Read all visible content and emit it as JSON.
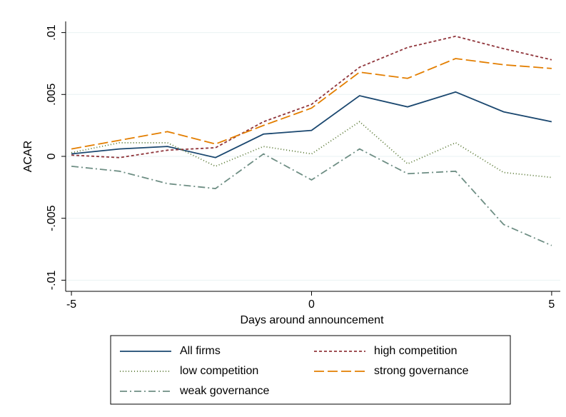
{
  "chart_data": {
    "type": "line",
    "x": [
      -5,
      -4,
      -3,
      -2,
      -1,
      0,
      1,
      2,
      3,
      4,
      5
    ],
    "series": [
      {
        "name": "All firms",
        "color": "#1a476f",
        "dash": "none",
        "values": [
          0.0002,
          0.0006,
          0.0008,
          -0.0001,
          0.0018,
          0.0021,
          0.0049,
          0.004,
          0.0052,
          0.0036,
          0.0028
        ]
      },
      {
        "name": "high competition",
        "color": "#90353b",
        "dash": "4 3",
        "values": [
          0.0001,
          -0.0001,
          0.0005,
          0.0007,
          0.0028,
          0.0042,
          0.0072,
          0.0088,
          0.0097,
          0.0087,
          0.0078
        ]
      },
      {
        "name": "low competition",
        "color": "#55752f",
        "dash": "1 3",
        "values": [
          0.0003,
          0.0011,
          0.0011,
          -0.0008,
          0.0008,
          0.0002,
          0.0028,
          -0.0006,
          0.0011,
          -0.0013,
          -0.0017
        ]
      },
      {
        "name": "strong governance",
        "color": "#e37e00",
        "dash": "14 5",
        "values": [
          0.0006,
          0.0013,
          0.002,
          0.001,
          0.0025,
          0.0039,
          0.0068,
          0.0063,
          0.0079,
          0.0074,
          0.0071
        ]
      },
      {
        "name": "weak governance",
        "color": "#6e8e84",
        "dash": "10 4 2 4",
        "values": [
          -0.0008,
          -0.0012,
          -0.0022,
          -0.0026,
          0.0002,
          -0.0019,
          0.0006,
          -0.0014,
          -0.0012,
          -0.0055,
          -0.0072
        ]
      }
    ],
    "x_label": "Days around announcement",
    "y_label": "ACAR",
    "xlim": [
      -5.12,
      5.18
    ],
    "xticks": [
      -5,
      0,
      5
    ],
    "ylim": [
      -0.0109,
      0.0109
    ],
    "yticks": [
      {
        "value": 0.01,
        "label": ".01"
      },
      {
        "value": 0.005,
        "label": ".005"
      },
      0,
      {
        "value": -0.005,
        "label": "-.005"
      },
      {
        "value": -0.01,
        "label": "-.01"
      }
    ],
    "grid": true
  }
}
